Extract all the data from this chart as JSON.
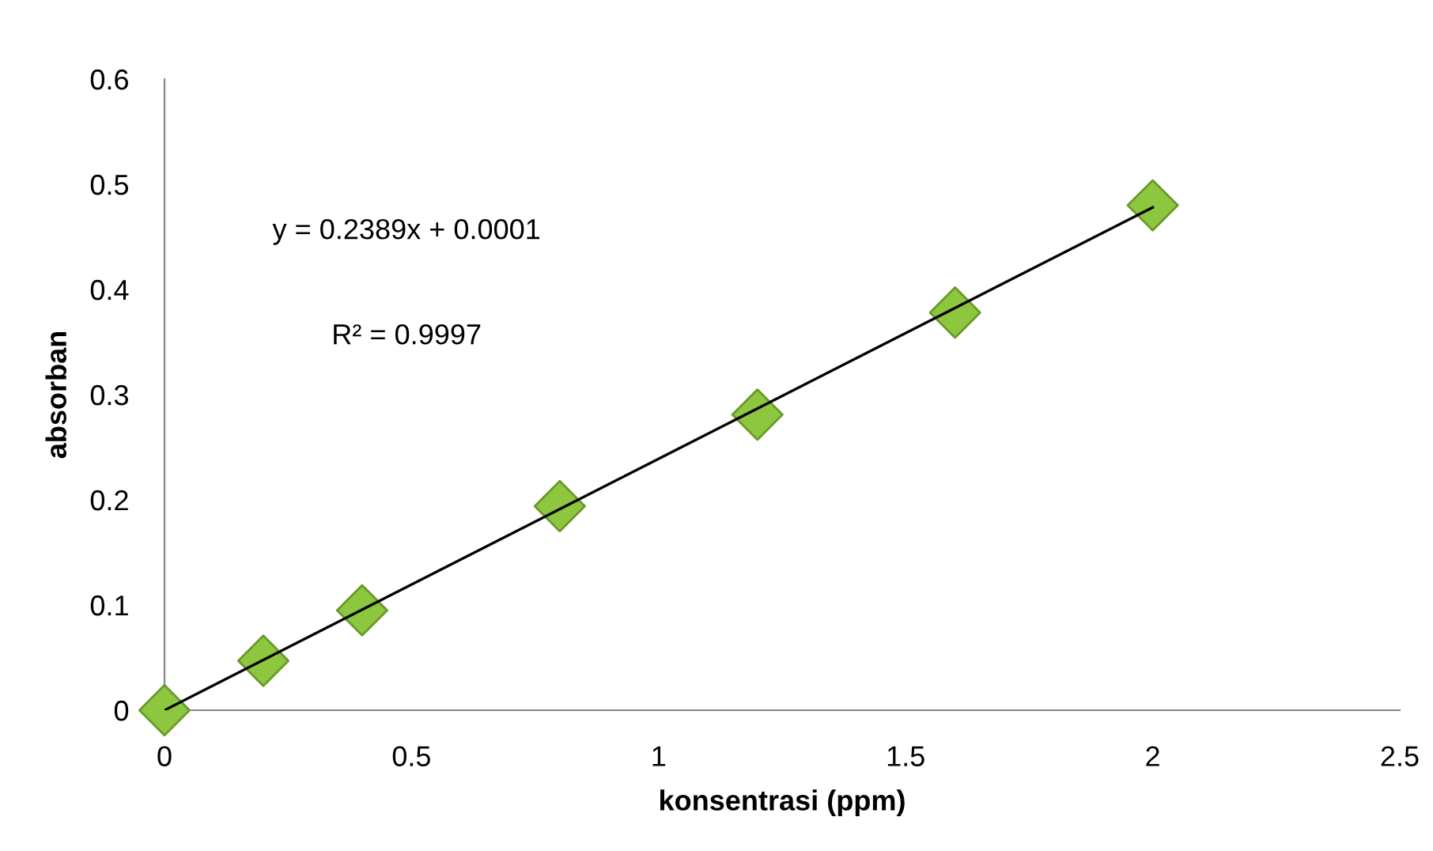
{
  "chart_data": {
    "type": "scatter",
    "xlabel": "konsentrasi (ppm)",
    "ylabel": "absorban",
    "series": [
      {
        "color": "#8dc63f",
        "marker": "diamond",
        "x": [
          0,
          0.2,
          0.4,
          0.8,
          1.2,
          1.6,
          2.0
        ],
        "values": [
          0,
          0.047,
          0.095,
          0.194,
          0.281,
          0.378,
          0.48
        ]
      },
      {
        "type": "line",
        "color": "#000000",
        "marker": "none",
        "line_style": "solid",
        "x": [
          0,
          2.0
        ],
        "values": [
          0,
          0.478
        ]
      }
    ],
    "xlim": [
      0,
      2.5
    ],
    "xticks": [
      0,
      0.5,
      1,
      1.5,
      2,
      2.5
    ],
    "ylim": [
      0,
      0.6
    ],
    "yticks": [
      0,
      0.1,
      0.2,
      0.3,
      0.4,
      0.5,
      0.6
    ],
    "grid": false,
    "legend": false,
    "annotations": [
      "y = 0.2389x + 0.0001",
      "R² = 0.9997"
    ]
  }
}
